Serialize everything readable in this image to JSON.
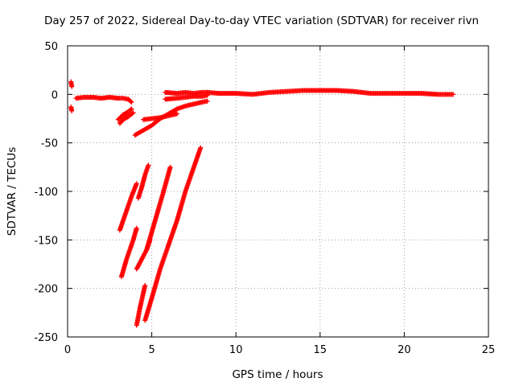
{
  "chart_data": {
    "type": "scatter",
    "title": "Day 257 of 2022, Sidereal Day-to-day VTEC variation (SDTVAR) for receiver rivn",
    "xlabel": "GPS time / hours",
    "ylabel": "SDTVAR / TECUs",
    "xlim": [
      0,
      25
    ],
    "ylim": [
      -250,
      50
    ],
    "xticks": [
      0,
      5,
      10,
      15,
      20,
      25
    ],
    "yticks": [
      -250,
      -200,
      -150,
      -100,
      -50,
      0,
      50
    ],
    "grid": true,
    "marker": "+",
    "color": "#ff0000",
    "segments": [
      {
        "x": [
          0.2,
          0.25
        ],
        "y": [
          13,
          8
        ]
      },
      {
        "x": [
          0.2,
          0.25
        ],
        "y": [
          -13,
          -17
        ]
      },
      {
        "x": [
          0.5,
          1.0,
          1.5,
          2.0,
          2.5,
          3.0,
          3.3,
          3.6,
          3.8
        ],
        "y": [
          -4,
          -3,
          -3,
          -4,
          -3,
          -4,
          -4,
          -5,
          -8
        ]
      },
      {
        "x": [
          3.0,
          3.3,
          3.6,
          3.8
        ],
        "y": [
          -26,
          -21,
          -18,
          -15
        ]
      },
      {
        "x": [
          3.1,
          3.3,
          3.6,
          3.9
        ],
        "y": [
          -30,
          -26,
          -23,
          -19
        ]
      },
      {
        "x": [
          4.0,
          4.5,
          5.0,
          5.5,
          6.0,
          6.5,
          7.0,
          7.5,
          8.0,
          8.3
        ],
        "y": [
          -42,
          -37,
          -32,
          -25,
          -20,
          -15,
          -12,
          -10,
          -8,
          -7
        ]
      },
      {
        "x": [
          4.5,
          5.0,
          5.5,
          6.0,
          6.5
        ],
        "y": [
          -26,
          -25,
          -24,
          -22,
          -20
        ]
      },
      {
        "x": [
          5.8,
          6.5,
          7.0,
          7.5,
          8.0,
          8.3
        ],
        "y": [
          -5,
          -4,
          -3,
          -2,
          -2,
          -1
        ]
      },
      {
        "x": [
          5.8,
          6.5,
          7.0,
          7.5,
          8.0,
          8.3
        ],
        "y": [
          2,
          1,
          2,
          1,
          2,
          2
        ]
      },
      {
        "x": [
          8.3,
          9.0,
          10.0,
          11.0,
          12.0,
          13.0,
          14.0,
          15.0,
          16.0,
          17.0,
          18.0,
          19.0,
          20.0,
          21.0,
          22.0,
          22.9
        ],
        "y": [
          2,
          1,
          1,
          0,
          2,
          3,
          4,
          4,
          4,
          3,
          1,
          1,
          1,
          1,
          0,
          0
        ]
      },
      {
        "x": [
          3.1,
          3.4,
          3.8,
          4.1
        ],
        "y": [
          -140,
          -125,
          -105,
          -92
        ]
      },
      {
        "x": [
          3.2,
          3.5,
          3.9,
          4.1
        ],
        "y": [
          -188,
          -170,
          -150,
          -138
        ]
      },
      {
        "x": [
          4.2,
          4.4,
          4.6,
          4.8
        ],
        "y": [
          -107,
          -96,
          -83,
          -73
        ]
      },
      {
        "x": [
          4.1,
          4.4,
          4.7,
          4.9
        ],
        "y": [
          -180,
          -170,
          -160,
          -150
        ]
      },
      {
        "x": [
          4.1,
          4.3,
          4.6
        ],
        "y": [
          -238,
          -220,
          -197
        ]
      },
      {
        "x": [
          4.7,
          5.2,
          5.7,
          6.1
        ],
        "y": [
          -160,
          -130,
          -100,
          -75
        ]
      },
      {
        "x": [
          4.6,
          5.0,
          5.5,
          6.0,
          6.5,
          7.0,
          7.5,
          7.9
        ],
        "y": [
          -233,
          -210,
          -180,
          -155,
          -130,
          -100,
          -75,
          -55
        ]
      }
    ]
  }
}
